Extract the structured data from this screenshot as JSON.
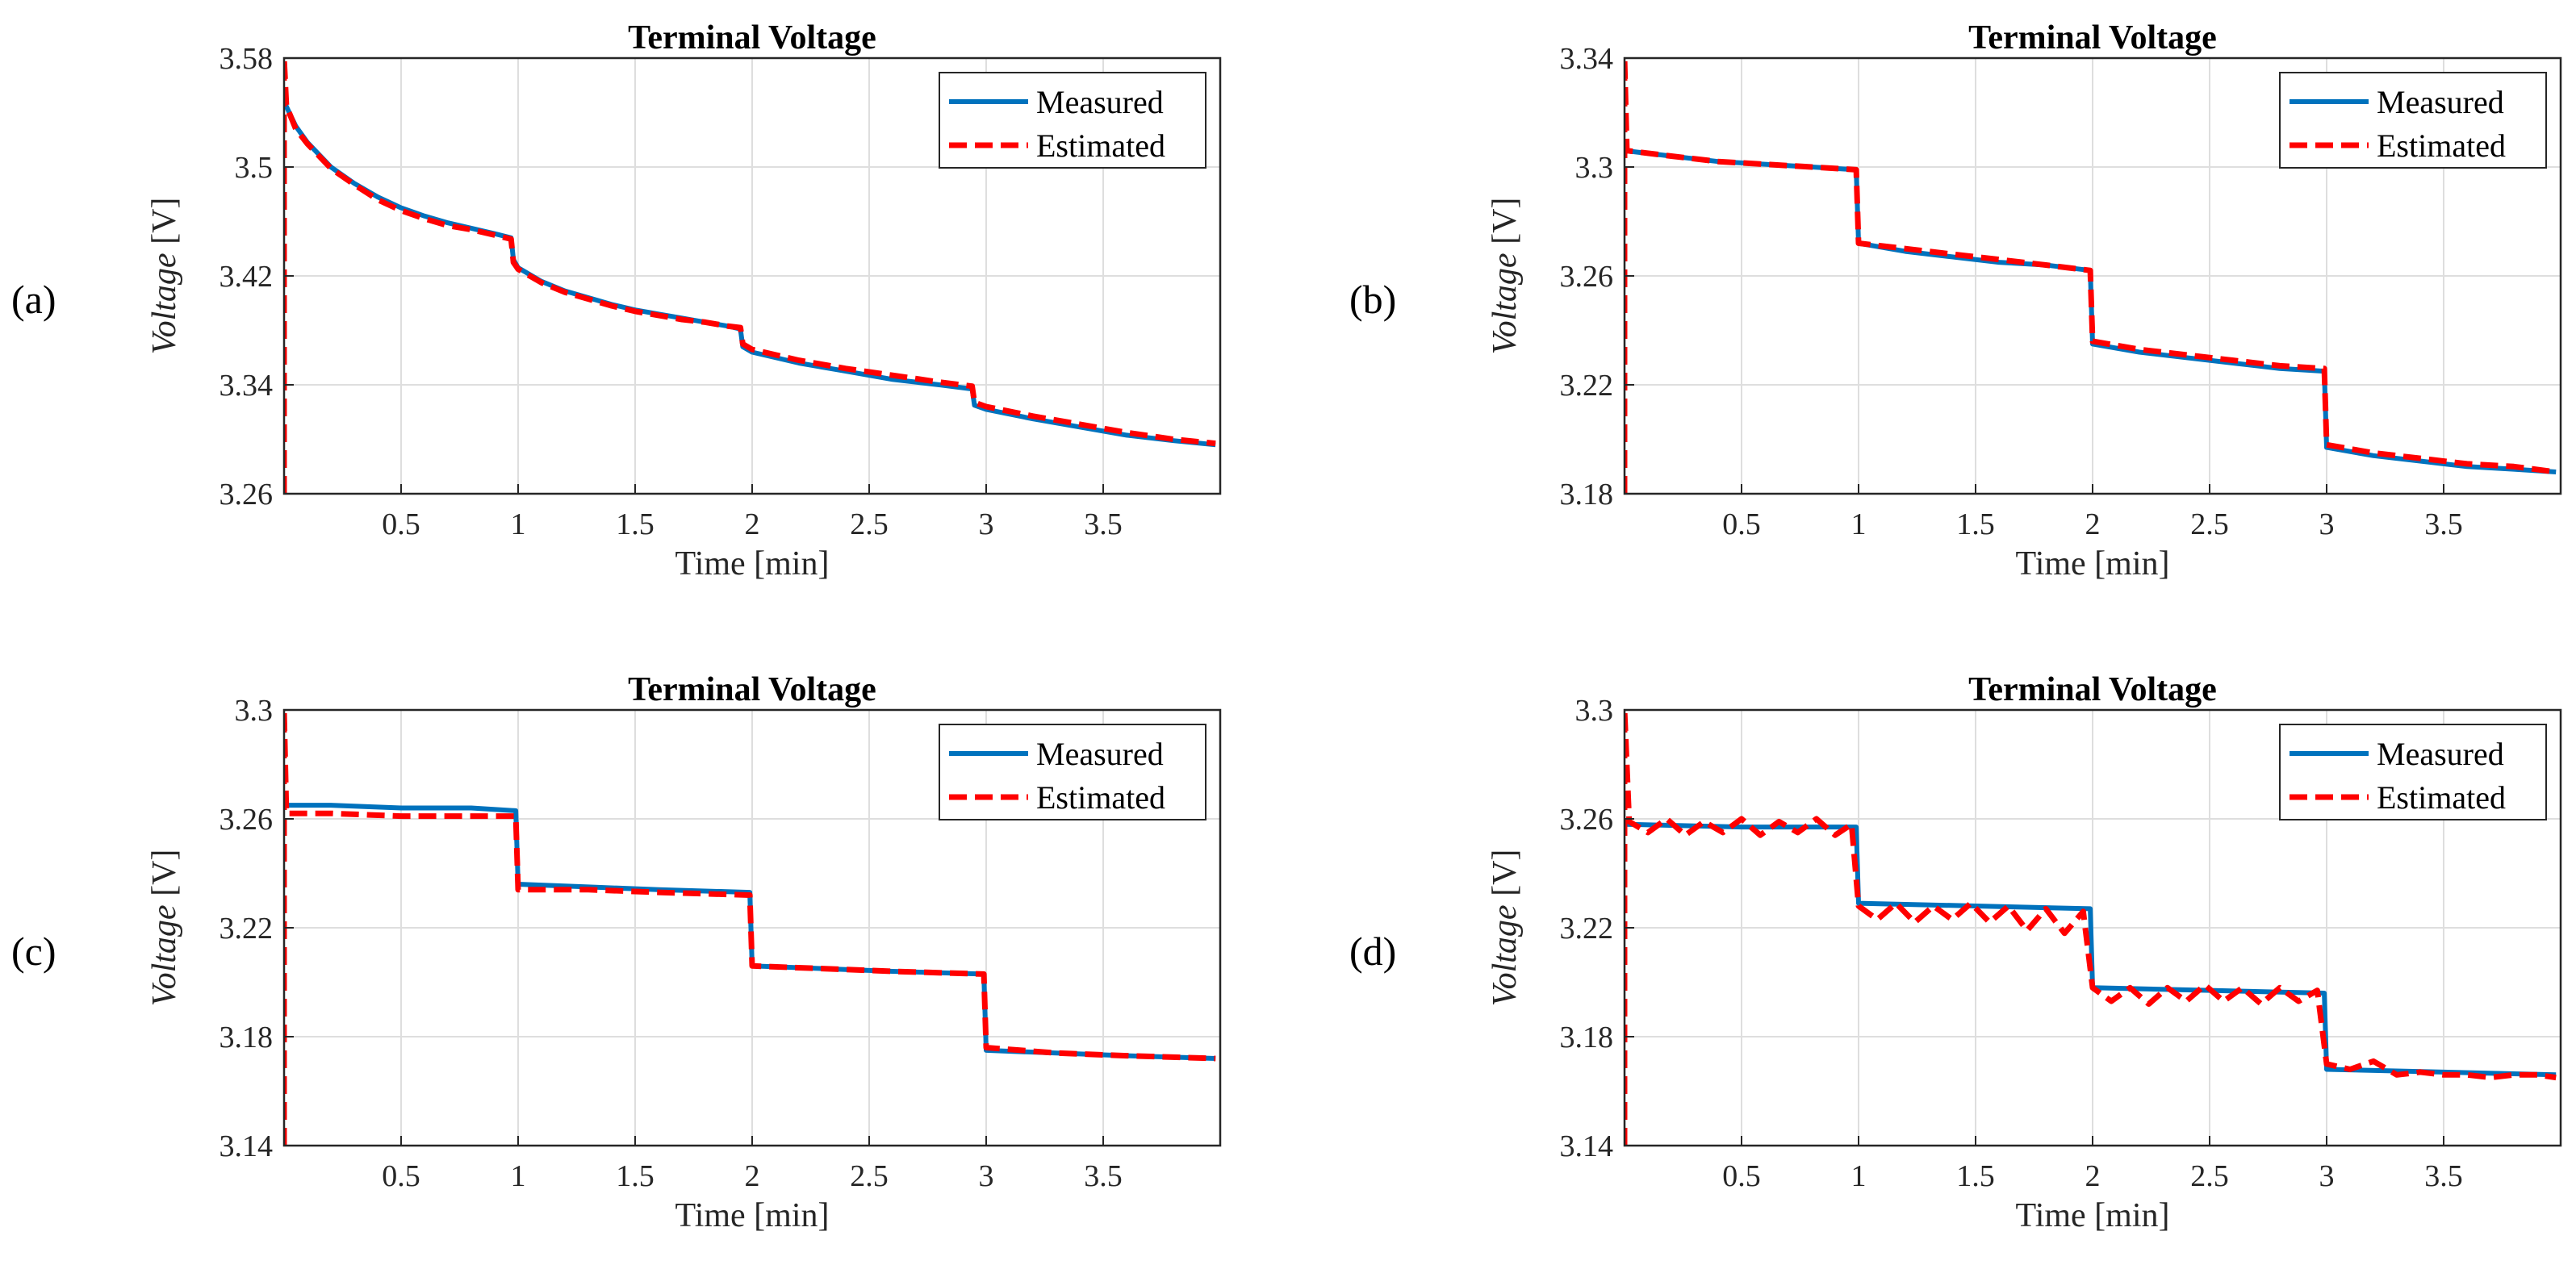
{
  "chart_data": [
    {
      "panel_label": "(a)",
      "type": "line",
      "title": "Terminal Voltage",
      "xlabel": "Time [min]",
      "ylabel_italic": "Voltage",
      "ylabel_unit": " [V]",
      "xlim": [
        0,
        4
      ],
      "ylim": [
        3.26,
        3.58
      ],
      "xticks": [
        0.5,
        1,
        1.5,
        2,
        2.5,
        3,
        3.5
      ],
      "xtick_labels": [
        "0.5",
        "1",
        "1.5",
        "2",
        "2.5",
        "3",
        "3.5"
      ],
      "yticks": [
        3.26,
        3.34,
        3.42,
        3.5,
        3.58
      ],
      "ytick_labels": [
        "3.26",
        "3.34",
        "3.42",
        "3.5",
        "3.58"
      ],
      "grid": true,
      "legend_position": "top-right",
      "series": [
        {
          "name": "Measured",
          "style": "solid",
          "color": "#0072BD",
          "points": [
            [
              0.0,
              3.548
            ],
            [
              0.05,
              3.53
            ],
            [
              0.1,
              3.518
            ],
            [
              0.2,
              3.5
            ],
            [
              0.3,
              3.488
            ],
            [
              0.4,
              3.478
            ],
            [
              0.5,
              3.47
            ],
            [
              0.6,
              3.464
            ],
            [
              0.7,
              3.459
            ],
            [
              0.8,
              3.455
            ],
            [
              0.9,
              3.451
            ],
            [
              0.97,
              3.448
            ],
            [
              0.98,
              3.432
            ],
            [
              1.0,
              3.426
            ],
            [
              1.1,
              3.416
            ],
            [
              1.2,
              3.409
            ],
            [
              1.3,
              3.404
            ],
            [
              1.4,
              3.399
            ],
            [
              1.5,
              3.395
            ],
            [
              1.6,
              3.392
            ],
            [
              1.7,
              3.389
            ],
            [
              1.8,
              3.386
            ],
            [
              1.9,
              3.383
            ],
            [
              1.95,
              3.381
            ],
            [
              1.96,
              3.368
            ],
            [
              2.0,
              3.364
            ],
            [
              2.2,
              3.356
            ],
            [
              2.4,
              3.35
            ],
            [
              2.6,
              3.344
            ],
            [
              2.8,
              3.34
            ],
            [
              2.94,
              3.337
            ],
            [
              2.95,
              3.325
            ],
            [
              3.0,
              3.322
            ],
            [
              3.2,
              3.315
            ],
            [
              3.4,
              3.309
            ],
            [
              3.6,
              3.303
            ],
            [
              3.8,
              3.299
            ],
            [
              3.98,
              3.296
            ]
          ]
        },
        {
          "name": "Estimated",
          "style": "dashed",
          "color": "#FF0000",
          "points": [
            [
              0.0,
              3.26
            ],
            [
              0.0,
              3.58
            ],
            [
              0.01,
              3.545
            ],
            [
              0.05,
              3.528
            ],
            [
              0.1,
              3.517
            ],
            [
              0.2,
              3.499
            ],
            [
              0.3,
              3.487
            ],
            [
              0.4,
              3.476
            ],
            [
              0.5,
              3.468
            ],
            [
              0.6,
              3.462
            ],
            [
              0.7,
              3.457
            ],
            [
              0.8,
              3.454
            ],
            [
              0.9,
              3.45
            ],
            [
              0.97,
              3.447
            ],
            [
              0.98,
              3.43
            ],
            [
              1.0,
              3.425
            ],
            [
              1.1,
              3.415
            ],
            [
              1.2,
              3.408
            ],
            [
              1.3,
              3.403
            ],
            [
              1.4,
              3.398
            ],
            [
              1.5,
              3.394
            ],
            [
              1.6,
              3.391
            ],
            [
              1.7,
              3.388
            ],
            [
              1.8,
              3.386
            ],
            [
              1.9,
              3.383
            ],
            [
              1.95,
              3.382
            ],
            [
              1.96,
              3.37
            ],
            [
              2.0,
              3.366
            ],
            [
              2.2,
              3.358
            ],
            [
              2.4,
              3.352
            ],
            [
              2.6,
              3.347
            ],
            [
              2.8,
              3.342
            ],
            [
              2.94,
              3.339
            ],
            [
              2.95,
              3.327
            ],
            [
              3.0,
              3.324
            ],
            [
              3.2,
              3.317
            ],
            [
              3.4,
              3.311
            ],
            [
              3.6,
              3.305
            ],
            [
              3.8,
              3.3
            ],
            [
              3.98,
              3.297
            ]
          ]
        }
      ]
    },
    {
      "panel_label": "(b)",
      "type": "line",
      "title": "Terminal Voltage",
      "xlabel": "Time [min]",
      "ylabel_italic": "Voltage",
      "ylabel_unit": " [V]",
      "xlim": [
        0,
        4
      ],
      "ylim": [
        3.18,
        3.34
      ],
      "xticks": [
        0.5,
        1,
        1.5,
        2,
        2.5,
        3,
        3.5
      ],
      "xtick_labels": [
        "0.5",
        "1",
        "1.5",
        "2",
        "2.5",
        "3",
        "3.5"
      ],
      "yticks": [
        3.18,
        3.22,
        3.26,
        3.3,
        3.34
      ],
      "ytick_labels": [
        "3.18",
        "3.22",
        "3.26",
        "3.3",
        "3.34"
      ],
      "grid": true,
      "legend_position": "top-right",
      "series": [
        {
          "name": "Measured",
          "style": "solid",
          "color": "#0072BD",
          "points": [
            [
              0.0,
              3.306
            ],
            [
              0.2,
              3.304
            ],
            [
              0.4,
              3.302
            ],
            [
              0.6,
              3.301
            ],
            [
              0.8,
              3.3
            ],
            [
              0.99,
              3.299
            ],
            [
              1.0,
              3.272
            ],
            [
              1.2,
              3.269
            ],
            [
              1.4,
              3.267
            ],
            [
              1.6,
              3.265
            ],
            [
              1.8,
              3.264
            ],
            [
              1.99,
              3.262
            ],
            [
              2.0,
              3.235
            ],
            [
              2.2,
              3.232
            ],
            [
              2.4,
              3.23
            ],
            [
              2.6,
              3.228
            ],
            [
              2.8,
              3.226
            ],
            [
              2.99,
              3.225
            ],
            [
              3.0,
              3.197
            ],
            [
              3.2,
              3.194
            ],
            [
              3.4,
              3.192
            ],
            [
              3.6,
              3.19
            ],
            [
              3.8,
              3.189
            ],
            [
              3.98,
              3.188
            ]
          ]
        },
        {
          "name": "Estimated",
          "style": "dashed",
          "color": "#FF0000",
          "points": [
            [
              0.0,
              3.18
            ],
            [
              0.0,
              3.34
            ],
            [
              0.01,
              3.306
            ],
            [
              0.2,
              3.304
            ],
            [
              0.4,
              3.302
            ],
            [
              0.6,
              3.301
            ],
            [
              0.8,
              3.3
            ],
            [
              0.99,
              3.299
            ],
            [
              1.0,
              3.272
            ],
            [
              1.2,
              3.27
            ],
            [
              1.4,
              3.268
            ],
            [
              1.6,
              3.266
            ],
            [
              1.8,
              3.264
            ],
            [
              1.99,
              3.262
            ],
            [
              2.0,
              3.236
            ],
            [
              2.2,
              3.233
            ],
            [
              2.4,
              3.231
            ],
            [
              2.6,
              3.229
            ],
            [
              2.8,
              3.227
            ],
            [
              2.99,
              3.226
            ],
            [
              3.0,
              3.198
            ],
            [
              3.2,
              3.195
            ],
            [
              3.4,
              3.193
            ],
            [
              3.6,
              3.191
            ],
            [
              3.8,
              3.19
            ],
            [
              3.98,
              3.188
            ]
          ]
        }
      ]
    },
    {
      "panel_label": "(c)",
      "type": "line",
      "title": "Terminal Voltage",
      "xlabel": "Time [min]",
      "ylabel_italic": "Voltage",
      "ylabel_unit": " [V]",
      "xlim": [
        0,
        4
      ],
      "ylim": [
        3.14,
        3.3
      ],
      "xticks": [
        0.5,
        1,
        1.5,
        2,
        2.5,
        3,
        3.5
      ],
      "xtick_labels": [
        "0.5",
        "1",
        "1.5",
        "2",
        "2.5",
        "3",
        "3.5"
      ],
      "yticks": [
        3.14,
        3.18,
        3.22,
        3.26,
        3.3
      ],
      "ytick_labels": [
        "3.14",
        "3.18",
        "3.22",
        "3.26",
        "3.3"
      ],
      "grid": true,
      "legend_position": "top-right",
      "series": [
        {
          "name": "Measured",
          "style": "solid",
          "color": "#0072BD",
          "points": [
            [
              0.0,
              3.265
            ],
            [
              0.2,
              3.265
            ],
            [
              0.5,
              3.264
            ],
            [
              0.8,
              3.264
            ],
            [
              0.99,
              3.263
            ],
            [
              1.0,
              3.236
            ],
            [
              1.3,
              3.235
            ],
            [
              1.6,
              3.234
            ],
            [
              1.99,
              3.233
            ],
            [
              2.0,
              3.206
            ],
            [
              2.3,
              3.205
            ],
            [
              2.6,
              3.204
            ],
            [
              2.99,
              3.203
            ],
            [
              3.0,
              3.175
            ],
            [
              3.3,
              3.174
            ],
            [
              3.6,
              3.173
            ],
            [
              3.98,
              3.172
            ]
          ]
        },
        {
          "name": "Estimated",
          "style": "dashed",
          "color": "#FF0000",
          "points": [
            [
              0.0,
              3.14
            ],
            [
              0.0,
              3.3
            ],
            [
              0.01,
              3.262
            ],
            [
              0.2,
              3.262
            ],
            [
              0.5,
              3.261
            ],
            [
              0.8,
              3.261
            ],
            [
              0.99,
              3.261
            ],
            [
              1.0,
              3.234
            ],
            [
              1.3,
              3.234
            ],
            [
              1.6,
              3.233
            ],
            [
              1.99,
              3.232
            ],
            [
              2.0,
              3.206
            ],
            [
              2.3,
              3.205
            ],
            [
              2.6,
              3.204
            ],
            [
              2.99,
              3.203
            ],
            [
              3.0,
              3.176
            ],
            [
              3.3,
              3.174
            ],
            [
              3.6,
              3.173
            ],
            [
              3.98,
              3.172
            ]
          ]
        }
      ]
    },
    {
      "panel_label": "(d)",
      "type": "line",
      "title": "Terminal Voltage",
      "xlabel": "Time [min]",
      "ylabel_italic": "Voltage",
      "ylabel_unit": " [V]",
      "xlim": [
        0,
        4
      ],
      "ylim": [
        3.14,
        3.3
      ],
      "xticks": [
        0.5,
        1,
        1.5,
        2,
        2.5,
        3,
        3.5
      ],
      "xtick_labels": [
        "0.5",
        "1",
        "1.5",
        "2",
        "2.5",
        "3",
        "3.5"
      ],
      "yticks": [
        3.14,
        3.18,
        3.22,
        3.26,
        3.3
      ],
      "ytick_labels": [
        "3.14",
        "3.18",
        "3.22",
        "3.26",
        "3.3"
      ],
      "grid": true,
      "legend_position": "top-right",
      "series": [
        {
          "name": "Measured",
          "style": "solid",
          "color": "#0072BD",
          "points": [
            [
              0.0,
              3.258
            ],
            [
              0.5,
              3.257
            ],
            [
              0.99,
              3.257
            ],
            [
              1.0,
              3.229
            ],
            [
              1.5,
              3.228
            ],
            [
              1.99,
              3.227
            ],
            [
              2.0,
              3.198
            ],
            [
              2.5,
              3.197
            ],
            [
              2.99,
              3.196
            ],
            [
              3.0,
              3.168
            ],
            [
              3.5,
              3.167
            ],
            [
              3.98,
              3.166
            ]
          ]
        },
        {
          "name": "Estimated",
          "style": "dashed",
          "color": "#FF0000",
          "points": [
            [
              0.0,
              3.14
            ],
            [
              0.0,
              3.3
            ],
            [
              0.02,
              3.259
            ],
            [
              0.1,
              3.255
            ],
            [
              0.18,
              3.26
            ],
            [
              0.26,
              3.254
            ],
            [
              0.34,
              3.259
            ],
            [
              0.42,
              3.255
            ],
            [
              0.5,
              3.26
            ],
            [
              0.58,
              3.254
            ],
            [
              0.66,
              3.259
            ],
            [
              0.74,
              3.255
            ],
            [
              0.82,
              3.26
            ],
            [
              0.9,
              3.254
            ],
            [
              0.97,
              3.258
            ],
            [
              1.0,
              3.228
            ],
            [
              1.08,
              3.223
            ],
            [
              1.16,
              3.229
            ],
            [
              1.24,
              3.222
            ],
            [
              1.32,
              3.228
            ],
            [
              1.4,
              3.223
            ],
            [
              1.48,
              3.229
            ],
            [
              1.56,
              3.222
            ],
            [
              1.64,
              3.228
            ],
            [
              1.72,
              3.219
            ],
            [
              1.8,
              3.227
            ],
            [
              1.88,
              3.218
            ],
            [
              1.96,
              3.226
            ],
            [
              2.0,
              3.198
            ],
            [
              2.08,
              3.193
            ],
            [
              2.16,
              3.198
            ],
            [
              2.24,
              3.192
            ],
            [
              2.32,
              3.198
            ],
            [
              2.4,
              3.193
            ],
            [
              2.48,
              3.199
            ],
            [
              2.56,
              3.193
            ],
            [
              2.64,
              3.198
            ],
            [
              2.72,
              3.192
            ],
            [
              2.8,
              3.198
            ],
            [
              2.88,
              3.193
            ],
            [
              2.96,
              3.197
            ],
            [
              3.0,
              3.17
            ],
            [
              3.1,
              3.168
            ],
            [
              3.2,
              3.171
            ],
            [
              3.3,
              3.166
            ],
            [
              3.4,
              3.167
            ],
            [
              3.5,
              3.166
            ],
            [
              3.6,
              3.166
            ],
            [
              3.7,
              3.165
            ],
            [
              3.8,
              3.166
            ],
            [
              3.9,
              3.166
            ],
            [
              3.98,
              3.165
            ]
          ]
        }
      ]
    }
  ]
}
